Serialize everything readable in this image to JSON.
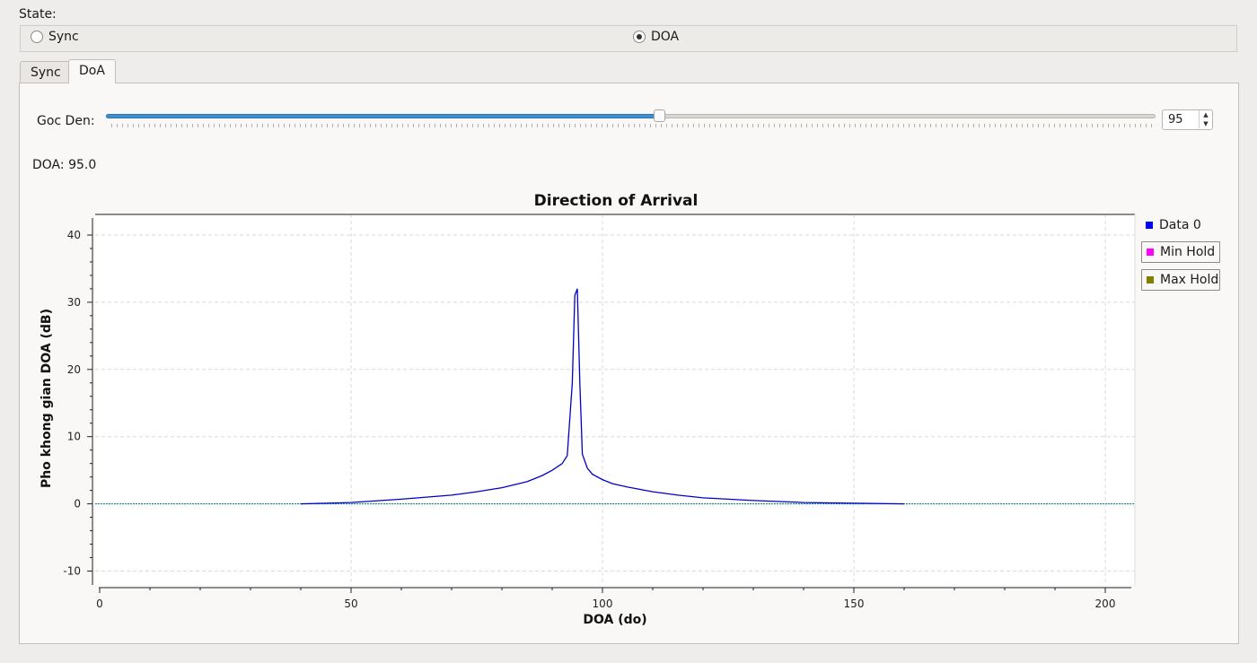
{
  "state": {
    "label": "State:",
    "options": [
      {
        "label": "Sync",
        "checked": false
      },
      {
        "label": "DOA",
        "checked": true
      }
    ]
  },
  "tabs": [
    {
      "label": "Sync",
      "active": false
    },
    {
      "label": "DoA",
      "active": true
    }
  ],
  "slider": {
    "label": "Goc Den:",
    "value": "95",
    "min": 0,
    "max": 180
  },
  "doa_readout": {
    "label": "DOA:",
    "value": "95.0"
  },
  "colors": {
    "data0": "#0000cc",
    "min_hold": "#ff00ff",
    "max_hold": "#808000",
    "zero_line": "#008080"
  },
  "legend": [
    {
      "label": "Data 0",
      "color": "#0000ff"
    },
    {
      "label": "Min Hold",
      "color": "#ff00ff"
    },
    {
      "label": "Max Hold",
      "color": "#808000"
    }
  ],
  "chart_data": {
    "type": "line",
    "title": "Direction of Arrival",
    "xlabel": "DOA (do)",
    "ylabel": "Pho khong gian DOA (dB)",
    "xlim": [
      0,
      205
    ],
    "ylim": [
      -11,
      42
    ],
    "xticks": [
      0,
      50,
      100,
      150,
      200
    ],
    "yticks": [
      -10,
      0,
      10,
      20,
      30,
      40
    ],
    "grid": true,
    "legend_position": "right",
    "series": [
      {
        "name": "Data 0",
        "x": [
          40,
          50,
          60,
          70,
          75,
          80,
          85,
          88,
          90,
          92,
          93,
          94,
          94.5,
          95,
          95.5,
          96,
          97,
          98,
          100,
          102,
          105,
          110,
          115,
          120,
          130,
          140,
          150,
          160
        ],
        "y": [
          0.0,
          0.2,
          0.7,
          1.3,
          1.8,
          2.4,
          3.3,
          4.2,
          5.0,
          6.0,
          7.2,
          18.0,
          31.0,
          32.0,
          18.0,
          7.4,
          5.3,
          4.4,
          3.6,
          3.0,
          2.5,
          1.8,
          1.3,
          0.9,
          0.5,
          0.2,
          0.1,
          0.0
        ]
      }
    ],
    "reference_line": {
      "y": 0
    }
  }
}
